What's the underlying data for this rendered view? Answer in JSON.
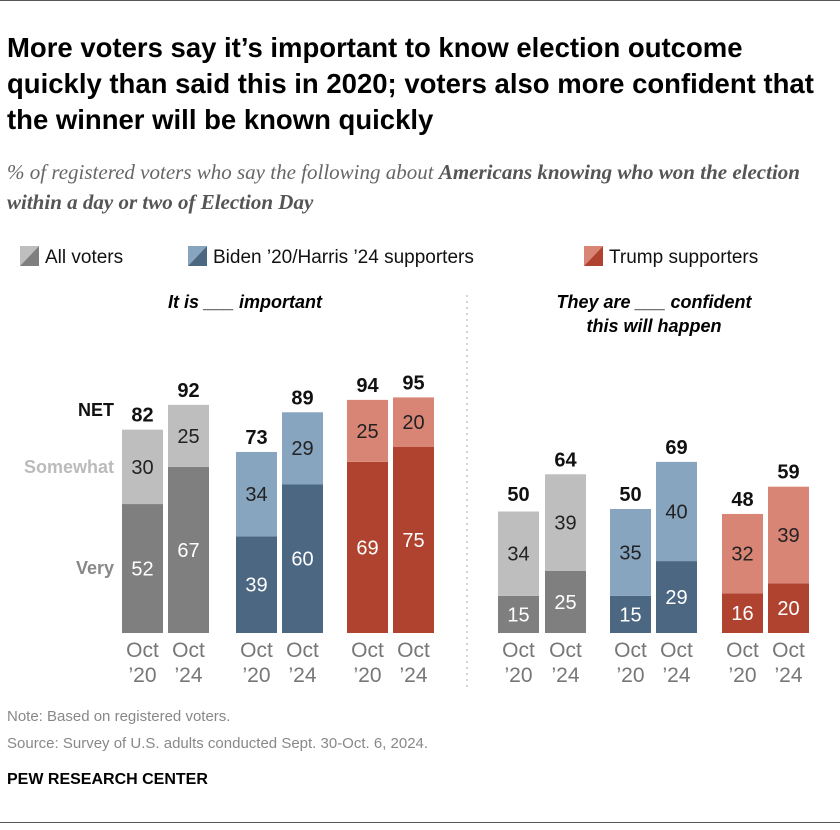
{
  "title": "More voters say it’s important to know election outcome quickly than said this in 2020; voters also more confident that the winner will be known quickly",
  "subtitle_plain": "% of registered voters who say the following about ",
  "subtitle_bold": "Americans knowing who won the election within a day or two of Election Day",
  "note": "Note: Based on registered voters.",
  "source": "Source: Survey of U.S. adults conducted Sept. 30-Oct. 6, 2024.",
  "brand": "PEW RESEARCH CENTER",
  "chart_data": {
    "type": "bar",
    "stacked": true,
    "legend": {
      "placement": "top",
      "entries": [
        "All voters",
        "Biden ’20/Harris ’24 supporters",
        "Trump supporters"
      ]
    },
    "colors": {
      "All voters": {
        "very": "#7f7f7f",
        "somewhat": "#bebebe"
      },
      "Biden ’20/Harris ’24 supporters": {
        "very": "#4b6782",
        "somewhat": "#88a5bf"
      },
      "Trump supporters": {
        "very": "#b04330",
        "somewhat": "#d98576"
      }
    },
    "row_labels": {
      "net": "NET",
      "somewhat": "Somewhat",
      "very": "Very"
    },
    "categories": [
      [
        "Oct",
        "’20"
      ],
      [
        "Oct",
        "’24"
      ]
    ],
    "panels": [
      {
        "title": [
          "It is ___ important"
        ],
        "groups": [
          {
            "name": "All voters",
            "very": [
              52,
              67
            ],
            "somewhat": [
              30,
              25
            ],
            "net": [
              82,
              92
            ]
          },
          {
            "name": "Biden ’20/Harris ’24 supporters",
            "very": [
              39,
              60
            ],
            "somewhat": [
              34,
              29
            ],
            "net": [
              73,
              89
            ]
          },
          {
            "name": "Trump supporters",
            "very": [
              69,
              75
            ],
            "somewhat": [
              25,
              20
            ],
            "net": [
              94,
              95
            ]
          }
        ]
      },
      {
        "title": [
          "They are ___ confident",
          "this will happen"
        ],
        "groups": [
          {
            "name": "All voters",
            "very": [
              15,
              25
            ],
            "somewhat": [
              34,
              39
            ],
            "net": [
              50,
              64
            ]
          },
          {
            "name": "Biden ’20/Harris ’24 supporters",
            "very": [
              15,
              29
            ],
            "somewhat": [
              35,
              40
            ],
            "net": [
              50,
              69
            ]
          },
          {
            "name": "Trump supporters",
            "very": [
              16,
              20
            ],
            "somewhat": [
              32,
              39
            ],
            "net": [
              48,
              59
            ]
          }
        ]
      }
    ]
  }
}
